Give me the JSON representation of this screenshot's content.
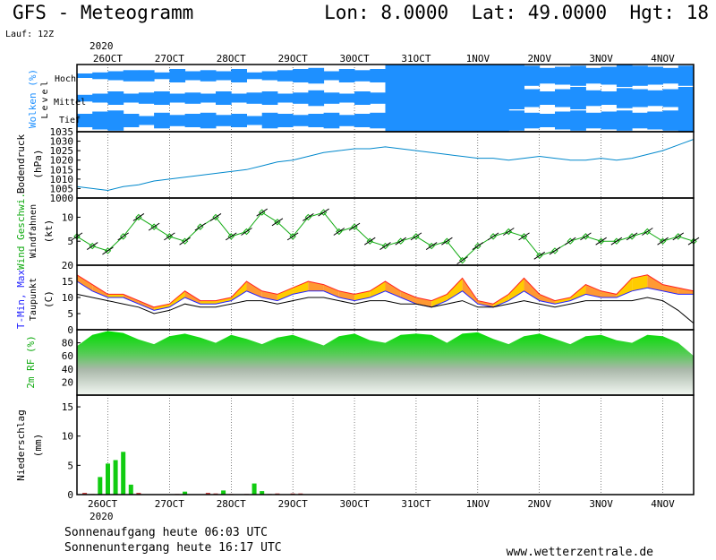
{
  "header": {
    "title": "GFS - Meteogramm",
    "coords": "Lon: 8.0000  Lat: 49.0000  Hgt: 18",
    "run": "Lauf: 12Z"
  },
  "footer": {
    "sunrise": "Sonnenaufgang heute 06:03 UTC",
    "sunset": "Sonnenuntergang heute 16:17 UTC",
    "site": "www.wetterzentrale.de"
  },
  "colors": {
    "cloud": "#1e90ff",
    "pressure": "#0088cc",
    "wind": "#11aa11",
    "tmax": "#ff2222",
    "tmin": "#2222ff",
    "humidity": "#11cc11",
    "precip": "#11cc11"
  },
  "chart_data": [
    {
      "type": "area",
      "name": "clouds",
      "ylabel": "Wolken (%)",
      "ylabel2": "Level",
      "levels": [
        "Hoch",
        "Mittel",
        "Tief"
      ],
      "year": "2020",
      "dates": [
        "26OCT",
        "27OCT",
        "28OCT",
        "29OCT",
        "30OCT",
        "31OCT",
        "1NOV",
        "2NOV",
        "3NOV",
        "4NOV"
      ],
      "start_date_labels": [
        "26OCT",
        "2020"
      ],
      "x": [
        0,
        6,
        12,
        18,
        24,
        30,
        36,
        42,
        48,
        54,
        60,
        66,
        72,
        78,
        84,
        90,
        96,
        102,
        108,
        114,
        120,
        126,
        132,
        138,
        144,
        150,
        156,
        162,
        168,
        174,
        180,
        186,
        192,
        198,
        204,
        210,
        216,
        222,
        228,
        234
      ],
      "series": [
        {
          "name": "Hoch",
          "values": [
            20,
            30,
            40,
            50,
            50,
            30,
            60,
            40,
            50,
            40,
            60,
            30,
            40,
            50,
            60,
            70,
            40,
            60,
            50,
            60,
            100,
            100,
            100,
            100,
            100,
            100,
            100,
            100,
            100,
            90,
            70,
            80,
            90,
            70,
            80,
            100,
            90,
            80,
            70,
            90
          ]
        },
        {
          "name": "Mittel",
          "values": [
            30,
            40,
            60,
            40,
            50,
            60,
            40,
            50,
            40,
            60,
            40,
            50,
            60,
            40,
            50,
            70,
            50,
            40,
            60,
            50,
            100,
            100,
            100,
            100,
            100,
            100,
            100,
            100,
            100,
            80,
            60,
            80,
            100,
            70,
            60,
            90,
            80,
            70,
            80,
            100
          ]
        },
        {
          "name": "Tief",
          "values": [
            60,
            80,
            90,
            60,
            40,
            70,
            50,
            60,
            70,
            50,
            60,
            40,
            70,
            60,
            50,
            60,
            70,
            50,
            60,
            70,
            100,
            100,
            100,
            100,
            100,
            100,
            100,
            100,
            90,
            70,
            60,
            80,
            90,
            70,
            80,
            90,
            70,
            80,
            90,
            100
          ]
        }
      ]
    },
    {
      "type": "line",
      "name": "pressure",
      "ylabel": "Bodendruck",
      "unit": "(hPa)",
      "ylim": [
        1000,
        1035
      ],
      "yticks": [
        1000,
        1005,
        1010,
        1015,
        1020,
        1025,
        1030,
        1035
      ],
      "x": [
        0,
        6,
        12,
        18,
        24,
        30,
        36,
        42,
        48,
        54,
        60,
        66,
        72,
        78,
        84,
        90,
        96,
        102,
        108,
        114,
        120,
        126,
        132,
        138,
        144,
        150,
        156,
        162,
        168,
        174,
        180,
        186,
        192,
        198,
        204,
        210,
        216,
        222,
        228,
        234,
        240
      ],
      "values": [
        1006,
        1005,
        1004,
        1006,
        1007,
        1009,
        1010,
        1011,
        1012,
        1013,
        1014,
        1015,
        1017,
        1019,
        1020,
        1022,
        1024,
        1025,
        1026,
        1026,
        1027,
        1026,
        1025,
        1024,
        1023,
        1022,
        1021,
        1021,
        1020,
        1021,
        1022,
        1021,
        1020,
        1020,
        1021,
        1020,
        1021,
        1023,
        1025,
        1028,
        1031
      ]
    },
    {
      "type": "line",
      "name": "wind",
      "ylabel": "Wind Geschwi.",
      "ylabel2": "Windfahnen",
      "unit": "(kt)",
      "ylim": [
        0,
        14
      ],
      "yticks": [
        5,
        10
      ],
      "x": [
        0,
        6,
        12,
        18,
        24,
        30,
        36,
        42,
        48,
        54,
        60,
        66,
        72,
        78,
        84,
        90,
        96,
        102,
        108,
        114,
        120,
        126,
        132,
        138,
        144,
        150,
        156,
        162,
        168,
        174,
        180,
        186,
        192,
        198,
        204,
        210,
        216,
        222,
        228,
        234,
        240
      ],
      "values": [
        6,
        4,
        3,
        6,
        10,
        8,
        6,
        5,
        8,
        10,
        6,
        7,
        11,
        9,
        6,
        10,
        11,
        7,
        8,
        5,
        4,
        5,
        6,
        4,
        5,
        1,
        4,
        6,
        7,
        6,
        2,
        3,
        5,
        6,
        5,
        5,
        6,
        7,
        5,
        6,
        5
      ]
    },
    {
      "type": "line",
      "name": "temperature",
      "ylabel": "T-Min, Max",
      "ylabel2": "Taupunkt",
      "unit": "(C)",
      "ylim": [
        0,
        20
      ],
      "yticks": [
        0,
        5,
        10,
        15,
        20
      ],
      "x": [
        0,
        6,
        12,
        18,
        24,
        30,
        36,
        42,
        48,
        54,
        60,
        66,
        72,
        78,
        84,
        90,
        96,
        102,
        108,
        114,
        120,
        126,
        132,
        138,
        144,
        150,
        156,
        162,
        168,
        174,
        180,
        186,
        192,
        198,
        204,
        210,
        216,
        222,
        228,
        234,
        240
      ],
      "series": [
        {
          "name": "T-Max",
          "values": [
            17,
            14,
            11,
            11,
            9,
            7,
            8,
            12,
            9,
            9,
            10,
            15,
            12,
            11,
            13,
            15,
            14,
            12,
            11,
            12,
            15,
            12,
            10,
            9,
            11,
            16,
            9,
            8,
            11,
            16,
            11,
            9,
            10,
            14,
            12,
            11,
            16,
            17,
            14,
            13,
            12
          ]
        },
        {
          "name": "T-Min",
          "values": [
            15,
            12,
            10,
            10,
            8,
            6,
            7,
            10,
            8,
            8,
            9,
            12,
            10,
            9,
            11,
            12,
            12,
            10,
            9,
            10,
            12,
            10,
            8,
            7,
            9,
            12,
            8,
            7,
            9,
            12,
            9,
            8,
            9,
            11,
            10,
            10,
            12,
            13,
            12,
            11,
            11
          ]
        },
        {
          "name": "Taupunkt",
          "values": [
            11,
            10,
            9,
            8,
            7,
            5,
            6,
            8,
            7,
            7,
            8,
            9,
            9,
            8,
            9,
            10,
            10,
            9,
            8,
            9,
            9,
            8,
            8,
            7,
            8,
            9,
            7,
            7,
            8,
            9,
            8,
            7,
            8,
            9,
            9,
            9,
            9,
            10,
            9,
            6,
            2
          ]
        }
      ]
    },
    {
      "type": "area",
      "name": "humidity",
      "ylabel": "2m RF (%)",
      "ylim": [
        0,
        100
      ],
      "yticks": [
        20,
        40,
        60,
        80
      ],
      "x": [
        0,
        6,
        12,
        18,
        24,
        30,
        36,
        42,
        48,
        54,
        60,
        66,
        72,
        78,
        84,
        90,
        96,
        102,
        108,
        114,
        120,
        126,
        132,
        138,
        144,
        150,
        156,
        162,
        168,
        174,
        180,
        186,
        192,
        198,
        204,
        210,
        216,
        222,
        228,
        234,
        240
      ],
      "values": [
        75,
        92,
        98,
        95,
        85,
        78,
        90,
        94,
        88,
        80,
        92,
        86,
        78,
        88,
        92,
        84,
        76,
        90,
        94,
        84,
        80,
        92,
        94,
        92,
        80,
        94,
        96,
        86,
        78,
        90,
        94,
        86,
        78,
        90,
        92,
        84,
        80,
        92,
        90,
        80,
        60
      ]
    },
    {
      "type": "bar",
      "name": "precipitation",
      "ylabel": "Niederschlag",
      "unit": "(mm)",
      "ylim": [
        0,
        17
      ],
      "yticks": [
        0,
        5,
        10,
        15
      ],
      "x": [
        3,
        6,
        9,
        12,
        15,
        18,
        21,
        24,
        39,
        42,
        51,
        54,
        57,
        60,
        66,
        69,
        72,
        75,
        78,
        84,
        87
      ],
      "values": [
        0.3,
        0.1,
        3,
        5.3,
        5.9,
        7.3,
        1.7,
        0.3,
        0.1,
        0.5,
        0.3,
        0.2,
        0.7,
        0.1,
        0.1,
        1.9,
        0.6,
        0.1,
        0.2,
        0.2,
        0.2
      ]
    }
  ]
}
